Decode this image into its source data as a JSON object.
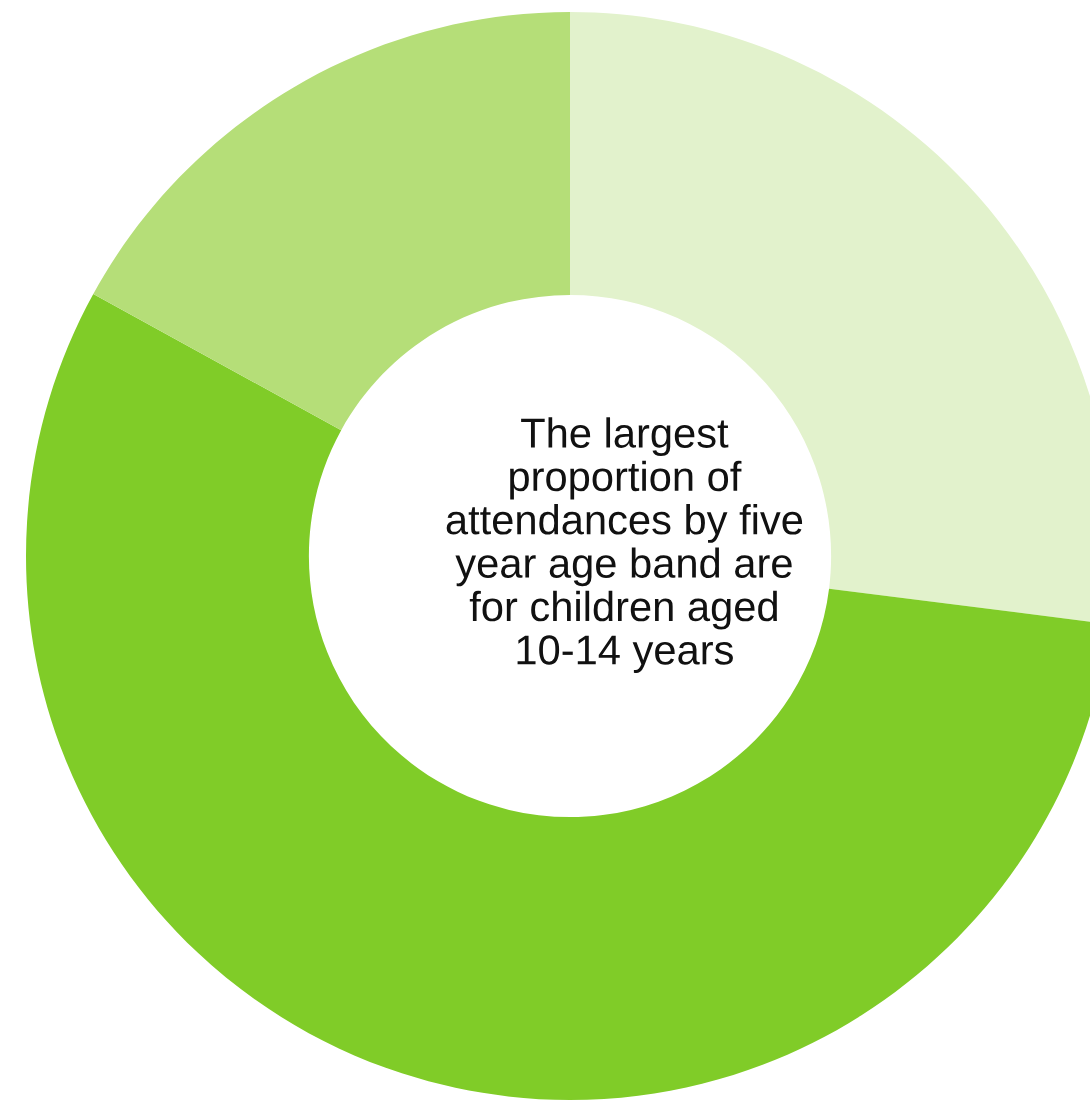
{
  "chart_data": {
    "type": "donut",
    "categories": [
      null,
      null,
      null
    ],
    "values": [
      27,
      56,
      17
    ],
    "colors": [
      "#e2f2cc",
      "#80cc28",
      "#b5de78"
    ],
    "annotations": [
      "The largest\nproportion of\nattendances by five\nyear age band are\nfor children aged\n10-14 years"
    ]
  }
}
